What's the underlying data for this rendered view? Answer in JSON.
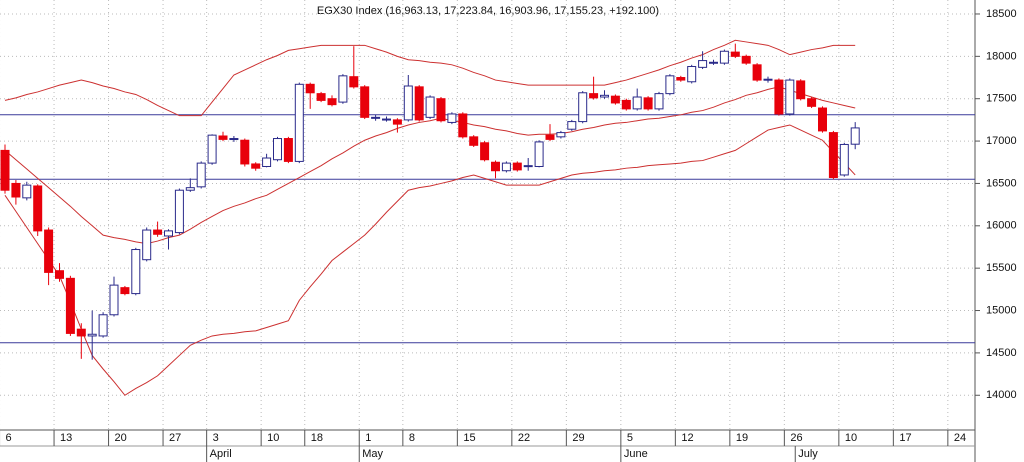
{
  "chart_data": {
    "type": "candlestick",
    "title": "EGX30 Index (16,963.13, 17,223.84, 16,903.96, 17,155.23, +192.100)",
    "categories": [
      "6",
      null,
      null,
      null,
      null,
      "13",
      null,
      null,
      null,
      null,
      "20",
      null,
      null,
      null,
      null,
      "27",
      null,
      null,
      null,
      "3",
      null,
      null,
      null,
      null,
      "10",
      null,
      null,
      null,
      "18",
      null,
      null,
      null,
      null,
      "1",
      null,
      null,
      null,
      "8",
      null,
      null,
      null,
      null,
      "15",
      null,
      null,
      null,
      null,
      "22",
      null,
      null,
      null,
      null,
      "29",
      null,
      null,
      null,
      null,
      "5",
      null,
      null,
      null,
      null,
      "12",
      null,
      null,
      null,
      null,
      "19",
      null,
      null,
      null,
      null,
      "26",
      null,
      null,
      null,
      null,
      "10",
      null,
      null,
      null,
      null,
      "17",
      null,
      null,
      null,
      null,
      "24",
      null
    ],
    "month_categories": [
      null,
      null,
      null,
      null,
      null,
      null,
      null,
      null,
      null,
      null,
      null,
      null,
      null,
      null,
      null,
      null,
      null,
      null,
      null,
      "April",
      null,
      null,
      null,
      null,
      null,
      null,
      null,
      null,
      null,
      null,
      null,
      null,
      null,
      "May",
      null,
      null,
      null,
      null,
      null,
      null,
      null,
      null,
      null,
      null,
      null,
      null,
      null,
      null,
      null,
      null,
      null,
      null,
      null,
      null,
      null,
      null,
      null,
      "June",
      null,
      null,
      null,
      null,
      null,
      null,
      null,
      null,
      null,
      null,
      null,
      null,
      null,
      null,
      null,
      "July",
      null,
      null,
      null,
      null,
      null,
      null,
      null,
      null,
      null,
      null,
      null,
      null,
      null,
      null,
      null,
      null
    ],
    "open": [
      16890,
      16500,
      16330,
      16470,
      15950,
      15470,
      15380,
      14780,
      14700,
      14700,
      14950,
      15270,
      15200,
      15600,
      15950,
      15880,
      15920,
      16420,
      16460,
      16740,
      17060,
      17020,
      17010,
      16730,
      16700,
      16780,
      17030,
      16760,
      17670,
      17560,
      17500,
      17460,
      17760,
      17640,
      17270,
      17250,
      17250,
      17250,
      17640,
      17280,
      17500,
      17220,
      17320,
      17050,
      16980,
      16750,
      16650,
      16740,
      16700,
      16700,
      17070,
      17050,
      17140,
      17230,
      17560,
      17520,
      17530,
      17480,
      17380,
      17510,
      17380,
      17560,
      17750,
      17700,
      17870,
      17920,
      17920,
      18050,
      18000,
      17900,
      17720,
      17720,
      17320,
      17710,
      17500,
      17390,
      17100,
      16600,
      16963.13,
      null,
      null,
      null,
      null,
      null,
      null,
      null,
      null,
      null,
      null
    ],
    "high": [
      16960,
      16540,
      16520,
      16490,
      15980,
      15560,
      15410,
      14850,
      15000,
      14980,
      15400,
      15290,
      15740,
      15980,
      16050,
      15960,
      16440,
      16560,
      16760,
      17080,
      17110,
      17060,
      17030,
      16750,
      16850,
      17050,
      17050,
      17690,
      17690,
      17580,
      17540,
      17790,
      18120,
      17660,
      17310,
      17290,
      17270,
      17780,
      17660,
      17540,
      17520,
      17340,
      17340,
      17070,
      17000,
      16770,
      16760,
      16760,
      16800,
      17010,
      17200,
      17120,
      17250,
      17590,
      17760,
      17600,
      17550,
      17500,
      17620,
      17530,
      17580,
      17790,
      17770,
      17900,
      18060,
      17960,
      18080,
      18150,
      18020,
      17920,
      17760,
      17740,
      17740,
      17730,
      17520,
      17410,
      17120,
      16980,
      17223.84,
      null,
      null,
      null,
      null,
      null,
      null,
      null,
      null,
      null,
      null
    ],
    "low": [
      16380,
      16250,
      16300,
      15880,
      15300,
      15340,
      14700,
      14430,
      14420,
      14680,
      14930,
      15180,
      15180,
      15580,
      15870,
      15720,
      15900,
      16400,
      16440,
      16720,
      17000,
      16990,
      16700,
      16650,
      16690,
      16760,
      16740,
      16740,
      17380,
      17460,
      17410,
      17440,
      17620,
      17260,
      17240,
      17230,
      17100,
      17230,
      17230,
      17260,
      17220,
      17200,
      17030,
      16930,
      16760,
      16560,
      16630,
      16640,
      16650,
      16690,
      17000,
      17030,
      17120,
      17210,
      17490,
      17500,
      17430,
      17360,
      17360,
      17360,
      17360,
      17540,
      17700,
      17680,
      17850,
      17900,
      17900,
      17980,
      17900,
      17700,
      17690,
      17300,
      17300,
      17480,
      17390,
      17100,
      16550,
      16580,
      16903.96,
      null,
      null,
      null,
      null,
      null,
      null,
      null,
      null,
      null,
      null
    ],
    "close": [
      16420,
      16340,
      16480,
      15940,
      15450,
      15380,
      14730,
      14700,
      14720,
      14950,
      15300,
      15200,
      15720,
      15950,
      15900,
      15940,
      16420,
      16450,
      16740,
      17070,
      17020,
      17030,
      16730,
      16680,
      16800,
      17030,
      16760,
      17670,
      17570,
      17480,
      17430,
      17770,
      17640,
      17280,
      17280,
      17260,
      17200,
      17650,
      17250,
      17520,
      17240,
      17320,
      17050,
      16950,
      16780,
      16650,
      16740,
      16660,
      16710,
      16990,
      17020,
      17100,
      17230,
      17570,
      17510,
      17540,
      17450,
      17380,
      17520,
      17380,
      17560,
      17770,
      17720,
      17880,
      17950,
      17930,
      18060,
      18000,
      17920,
      17720,
      17730,
      17320,
      17720,
      17500,
      17410,
      17120,
      16570,
      16960,
      17155.23,
      null,
      null,
      null,
      null,
      null,
      null,
      null,
      null,
      null,
      null
    ],
    "up_color": "#ffffff",
    "up_edge_color": "#2a2a8a",
    "down_color": "#e8000b",
    "bands": {
      "color": "#cc3030",
      "upper": [
        17480,
        17510,
        17550,
        17580,
        17620,
        17660,
        17690,
        17720,
        17690,
        17650,
        17620,
        17580,
        17550,
        17490,
        17420,
        17360,
        17300,
        17300,
        17300,
        17460,
        17620,
        17780,
        17840,
        17900,
        17960,
        18010,
        18070,
        18090,
        18110,
        18130,
        18130,
        18130,
        18130,
        18130,
        18090,
        18050,
        18000,
        17960,
        17950,
        17930,
        17920,
        17900,
        17860,
        17810,
        17770,
        17720,
        17700,
        17680,
        17660,
        17660,
        17660,
        17660,
        17660,
        17660,
        17660,
        17660,
        17690,
        17720,
        17760,
        17800,
        17840,
        17890,
        17930,
        17980,
        18020,
        18080,
        18130,
        18190,
        18170,
        18150,
        18130,
        18080,
        18020,
        18050,
        18080,
        18100,
        18130,
        18130,
        18130,
        null,
        null,
        null,
        null,
        null,
        null,
        null,
        null,
        null,
        null
      ],
      "middle": [
        16890,
        16780,
        16670,
        16560,
        16450,
        16340,
        16230,
        16110,
        16000,
        15890,
        15860,
        15840,
        15810,
        15790,
        15820,
        15860,
        15890,
        15960,
        16040,
        16110,
        16180,
        16230,
        16270,
        16320,
        16360,
        16430,
        16500,
        16570,
        16640,
        16710,
        16790,
        16860,
        16940,
        17010,
        17060,
        17100,
        17150,
        17190,
        17220,
        17240,
        17270,
        17240,
        17220,
        17190,
        17170,
        17140,
        17120,
        17090,
        17070,
        17080,
        17080,
        17090,
        17110,
        17140,
        17160,
        17190,
        17210,
        17220,
        17240,
        17260,
        17270,
        17290,
        17310,
        17340,
        17360,
        17400,
        17450,
        17490,
        17540,
        17570,
        17610,
        17640,
        17600,
        17560,
        17520,
        17480,
        17450,
        17420,
        17390,
        null,
        null,
        null,
        null,
        null,
        null,
        null,
        null,
        null,
        null
      ],
      "lower": [
        16360,
        16170,
        15980,
        15790,
        15600,
        15410,
        15100,
        14780,
        14470,
        14310,
        14160,
        14000,
        14080,
        14150,
        14230,
        14350,
        14470,
        14590,
        14650,
        14700,
        14720,
        14730,
        14750,
        14760,
        14800,
        14840,
        14880,
        15120,
        15280,
        15430,
        15590,
        15690,
        15790,
        15890,
        16020,
        16160,
        16290,
        16420,
        16450,
        16470,
        16500,
        16530,
        16570,
        16600,
        16560,
        16520,
        16480,
        16480,
        16480,
        16480,
        16520,
        16560,
        16600,
        16620,
        16630,
        16650,
        16660,
        16680,
        16690,
        16710,
        16720,
        16730,
        16740,
        16760,
        16770,
        16810,
        16850,
        16890,
        16970,
        17050,
        17130,
        17160,
        17190,
        17130,
        17070,
        17010,
        16870,
        16740,
        16600,
        null,
        null,
        null,
        null,
        null,
        null,
        null,
        null,
        null,
        null
      ]
    },
    "reference_lines": [
      17310,
      16550,
      14620
    ],
    "reference_color": "#3a3a9a",
    "ylim": [
      13590,
      18665
    ],
    "yticks": [
      14000,
      14500,
      15000,
      15500,
      16000,
      16500,
      17000,
      17500,
      18000,
      18500
    ],
    "grid": true
  }
}
